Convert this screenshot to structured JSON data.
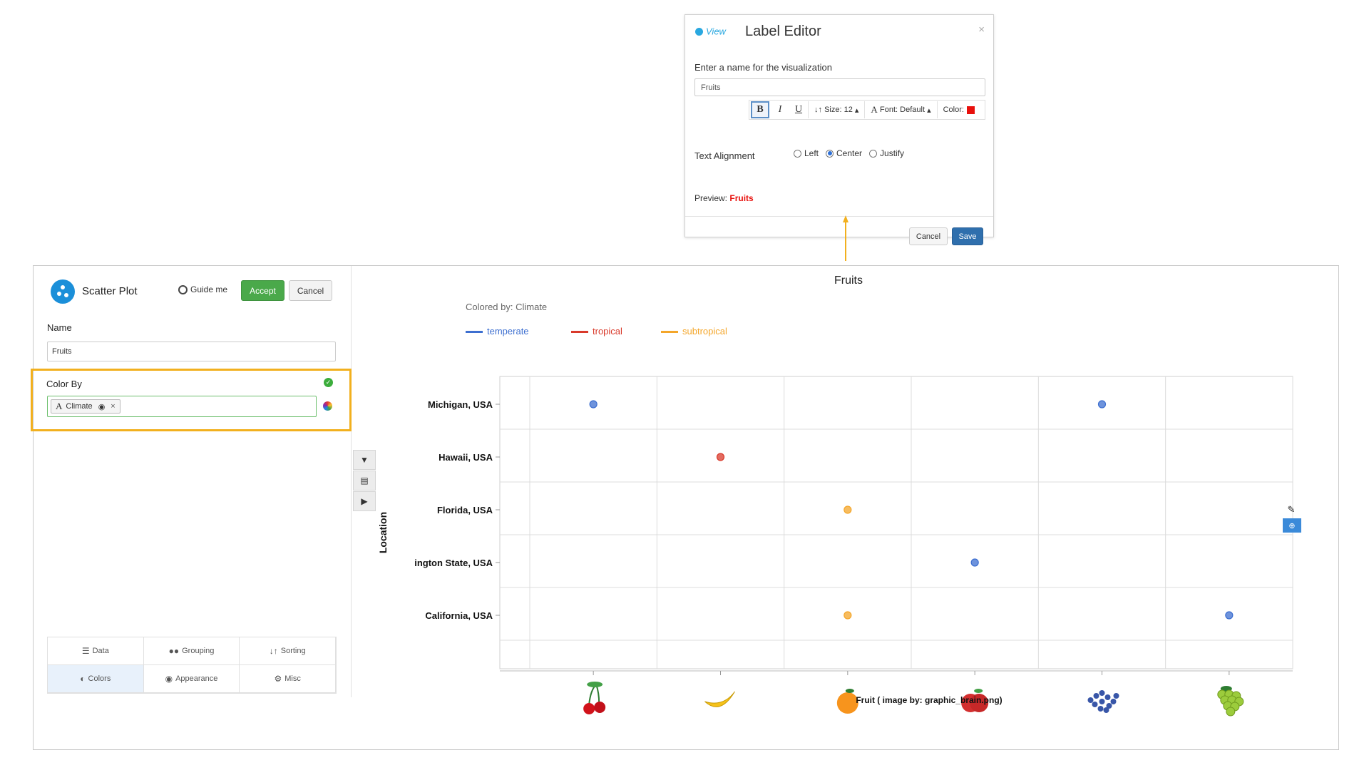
{
  "dialog": {
    "logo_text": "View",
    "title": "Label Editor",
    "close_glyph": "×",
    "prompt": "Enter a name for the visualization",
    "name_value": "Fruits",
    "toolbar": {
      "bold": "B",
      "italic": "I",
      "underline": "U",
      "size_label": "Size: 12",
      "font_label": "Font: Default",
      "color_label": "Color:",
      "color_value": "#e8100c"
    },
    "alignment_label": "Text Alignment",
    "alignment_options": [
      "Left",
      "Center",
      "Justify"
    ],
    "alignment_selected": "Center",
    "preview_label": "Preview:",
    "preview_value": "Fruits",
    "cancel_label": "Cancel",
    "save_label": "Save"
  },
  "editor": {
    "title": "Scatter Plot",
    "guide_label": "Guide me",
    "accept_label": "Accept",
    "cancel_label": "Cancel",
    "name_label": "Name",
    "name_value": "Fruits",
    "color_by_label": "Color By",
    "color_by_chip": "Climate",
    "tabs": [
      {
        "label": "Data",
        "icon": "database-icon"
      },
      {
        "label": "Grouping",
        "icon": "users-icon"
      },
      {
        "label": "Sorting",
        "icon": "sort-icon"
      },
      {
        "label": "Colors",
        "icon": "contrast-icon"
      },
      {
        "label": "Appearance",
        "icon": "eye-icon"
      },
      {
        "label": "Misc",
        "icon": "gear-icon"
      }
    ],
    "active_tab": "Colors"
  },
  "colors": {
    "accent": "#f2b01e",
    "accept": "#4aa94a",
    "save": "#2f6fad",
    "temperate": "#3d6fd0",
    "tropical": "#d93a2b",
    "subtropical": "#f4a62a"
  },
  "chart_data": {
    "type": "scatter",
    "title": "Fruits",
    "subtitle": "Colored by: Climate",
    "xlabel": "Fruit ( image by: graphic_brain.png)",
    "ylabel": "Location",
    "categories_y": [
      "Michigan, USA",
      "Hawaii, USA",
      "Florida, USA",
      "ington State, USA",
      "California, USA"
    ],
    "categories_x": [
      "cherry",
      "banana",
      "orange",
      "apple",
      "blueberry",
      "grape"
    ],
    "x_icons": [
      "cherry-icon",
      "banana-icon",
      "orange-icon",
      "apple-icon",
      "blueberries-icon",
      "grapes-icon"
    ],
    "legend": [
      {
        "name": "temperate",
        "color": "#3d6fd0"
      },
      {
        "name": "tropical",
        "color": "#d93a2b"
      },
      {
        "name": "subtropical",
        "color": "#f4a62a"
      }
    ],
    "legend_position": "top-left",
    "grid": true,
    "points": [
      {
        "x": "cherry",
        "y": "Michigan, USA",
        "group": "temperate"
      },
      {
        "x": "blueberry",
        "y": "Michigan, USA",
        "group": "temperate"
      },
      {
        "x": "banana",
        "y": "Hawaii, USA",
        "group": "tropical"
      },
      {
        "x": "orange",
        "y": "Florida, USA",
        "group": "subtropical"
      },
      {
        "x": "apple",
        "y": "ington State, USA",
        "group": "temperate"
      },
      {
        "x": "orange",
        "y": "California, USA",
        "group": "subtropical"
      },
      {
        "x": "grape",
        "y": "California, USA",
        "group": "temperate"
      }
    ]
  }
}
